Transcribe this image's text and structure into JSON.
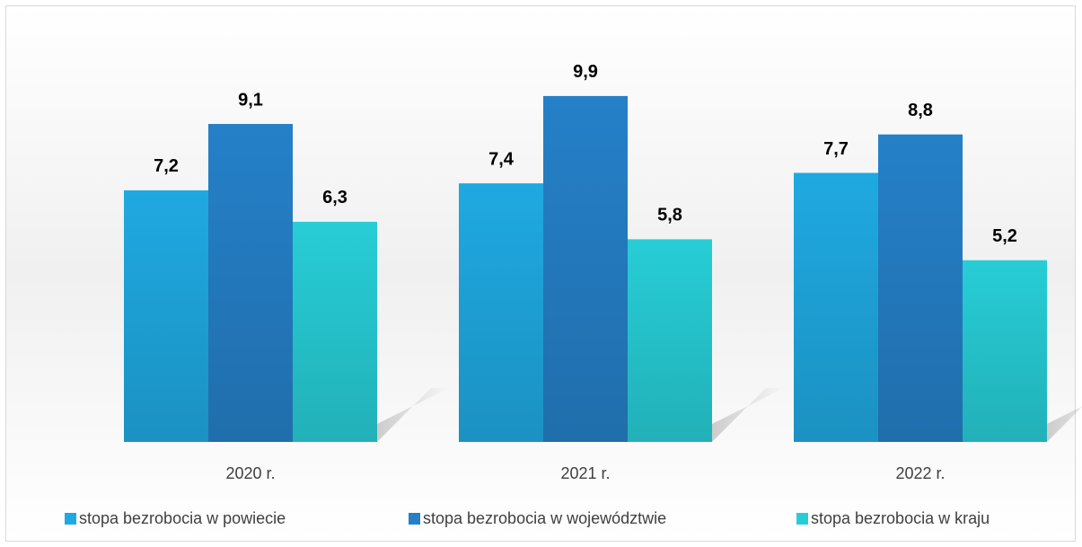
{
  "chart_data": {
    "type": "bar",
    "categories": [
      "2020 r.",
      "2021 r.",
      "2022 r."
    ],
    "series": [
      {
        "name": "stopa bezrobocia w powiecie",
        "color": "#1fa9e1",
        "values": [
          7.2,
          7.4,
          7.7
        ],
        "value_labels": [
          "7,2",
          "7,4",
          "7,7"
        ]
      },
      {
        "name": "stopa bezrobocia w województwie",
        "color": "#2580c8",
        "values": [
          9.1,
          9.9,
          8.8
        ],
        "value_labels": [
          "9,1",
          "9,9",
          "8,8"
        ]
      },
      {
        "name": "stopa bezrobocia w kraju",
        "color": "#27cdd6",
        "values": [
          6.3,
          5.8,
          5.2
        ],
        "value_labels": [
          "6,3",
          "5,8",
          "5,2"
        ]
      }
    ],
    "legend": "bottom"
  }
}
